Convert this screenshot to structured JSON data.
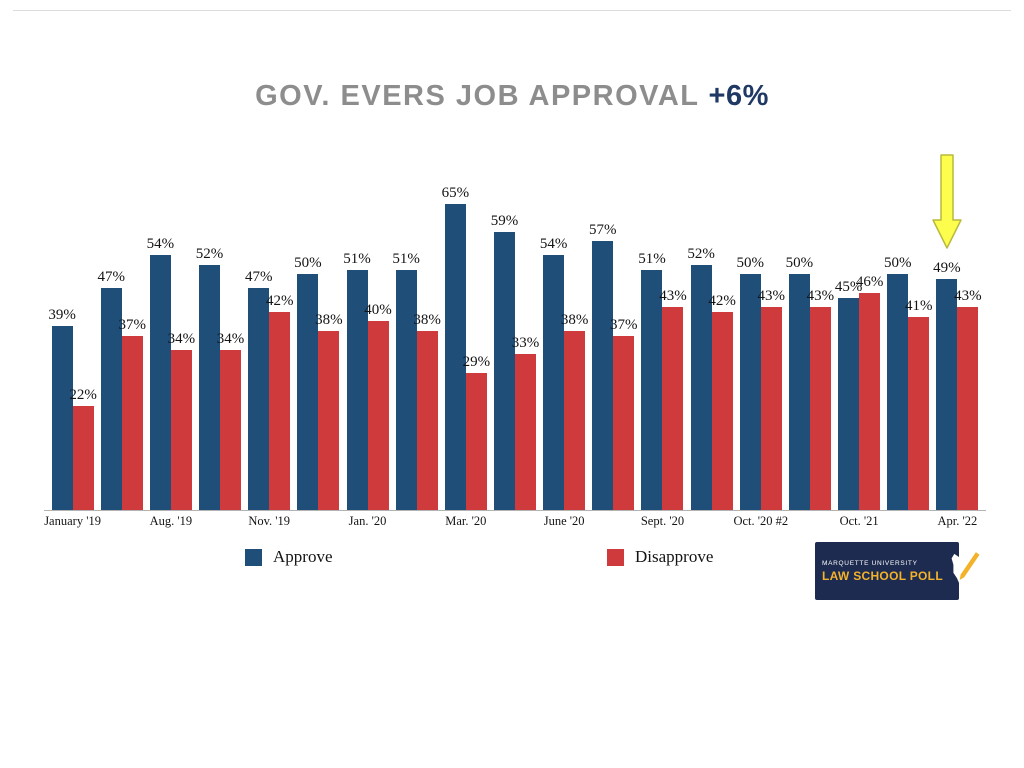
{
  "title": {
    "main": "GOV. EVERS JOB APPROVAL",
    "highlight": "+6%"
  },
  "colors": {
    "title_gray": "#8d8d8d",
    "highlight_navy": "#1f3864",
    "approve_blue": "#1f4e79",
    "disapprove_red": "#cf3a3c",
    "arrow_yellow": "#fdfd4e",
    "logo_navy": "#1d2b50",
    "logo_gold": "#f3b22a"
  },
  "chart_data": {
    "type": "bar",
    "n_groups": 19,
    "ylim": [
      0,
      70
    ],
    "value_suffix": "%",
    "grid": false,
    "legend_position": "bottom",
    "series": [
      {
        "name": "Approve",
        "color": "#1f4e79",
        "values": [
          39,
          47,
          54,
          52,
          47,
          50,
          51,
          51,
          65,
          59,
          54,
          57,
          51,
          52,
          50,
          50,
          45,
          50,
          49
        ]
      },
      {
        "name": "Disapprove",
        "color": "#cf3a3c",
        "values": [
          22,
          37,
          34,
          34,
          42,
          38,
          40,
          38,
          29,
          33,
          38,
          37,
          43,
          42,
          43,
          43,
          46,
          41,
          43
        ]
      }
    ],
    "x_tick_labels": [
      "January '19",
      "Aug. '19",
      "Nov. '19",
      "Jan. '20",
      "Mar. '20",
      "June '20",
      "Sept. '20",
      "Oct. '20 #2",
      "Oct. '21",
      "Apr. '22"
    ],
    "x_tick_group_index": [
      0,
      2,
      4,
      6,
      8,
      10,
      12,
      14,
      16,
      18
    ],
    "title": "GOV. EVERS JOB APPROVAL +6%"
  },
  "legend": {
    "approve_label": "Approve",
    "disapprove_label": "Disapprove"
  },
  "annotation": {
    "icon": "down-arrow",
    "points_at": "Apr. '22"
  },
  "logo": {
    "line1": "MARQUETTE UNIVERSITY",
    "line2": "LAW SCHOOL POLL"
  }
}
